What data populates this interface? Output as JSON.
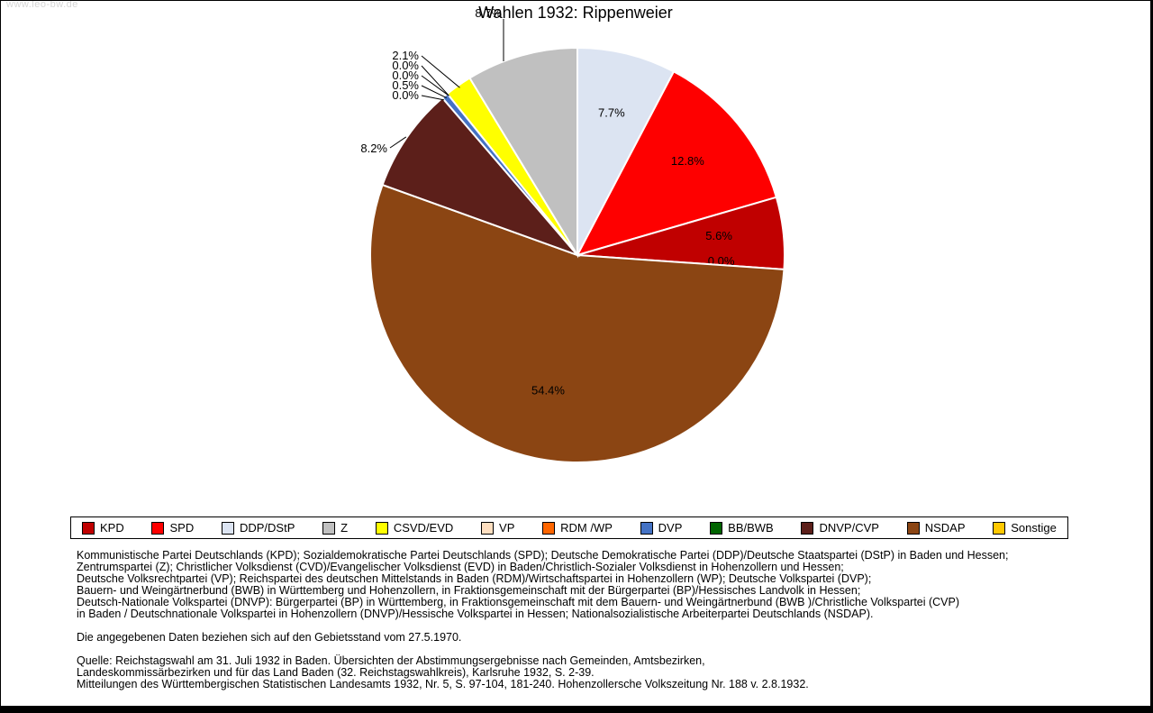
{
  "watermark": "www.leo-bw.de",
  "title": "Wahlen 1932: Rippenweier",
  "chart_data": {
    "type": "pie",
    "title": "Wahlen 1932: Rippenweier",
    "unit": "%",
    "direction": "clockwise",
    "start_angle_deg": 0,
    "legend_position": "bottom",
    "slices": [
      {
        "party": "DDP/DStP",
        "value": 7.7,
        "color": "#dce4f2",
        "label_placement": "inside"
      },
      {
        "party": "SPD",
        "value": 12.8,
        "color": "#fe0000",
        "label_placement": "inside"
      },
      {
        "party": "KPD",
        "value": 5.6,
        "color": "#c00000",
        "label_placement": "inside"
      },
      {
        "party": "Sonstige",
        "value": 0.0,
        "color": "#ffc800",
        "label_placement": "inside",
        "label_radius": 160
      },
      {
        "party": "NSDAP",
        "value": 54.4,
        "color": "#8b4513",
        "label_placement": "inside"
      },
      {
        "party": "DNVP/CVP",
        "value": 8.2,
        "color": "#5c1f1a",
        "label_placement": "left"
      },
      {
        "party": "BB/BWB",
        "value": 0.0,
        "color": "#006400",
        "label_placement": "stack"
      },
      {
        "party": "DVP",
        "value": 0.5,
        "color": "#4472c4",
        "label_placement": "stack"
      },
      {
        "party": "RDM /WP",
        "value": 0.0,
        "color": "#ff6600",
        "label_placement": "stack"
      },
      {
        "party": "VP",
        "value": 0.0,
        "color": "#ffdfc0",
        "label_placement": "stack"
      },
      {
        "party": "CSVD/EVD",
        "value": 2.1,
        "color": "#ffff00",
        "label_placement": "stack"
      },
      {
        "party": "Z",
        "value": 8.7,
        "color": "#c0c0c0",
        "label_placement": "top"
      }
    ]
  },
  "legend": {
    "items": [
      {
        "label": "KPD",
        "color": "#c00000"
      },
      {
        "label": "SPD",
        "color": "#fe0000"
      },
      {
        "label": "DDP/DStP",
        "color": "#dce4f2"
      },
      {
        "label": "Z",
        "color": "#c0c0c0"
      },
      {
        "label": "CSVD/EVD",
        "color": "#ffff00"
      },
      {
        "label": "VP",
        "color": "#ffdfc0"
      },
      {
        "label": "RDM /WP",
        "color": "#ff6600"
      },
      {
        "label": "DVP",
        "color": "#4472c4"
      },
      {
        "label": "BB/BWB",
        "color": "#006400"
      },
      {
        "label": "DNVP/CVP",
        "color": "#5c1f1a"
      },
      {
        "label": "NSDAP",
        "color": "#8b4513"
      },
      {
        "label": "Sonstige",
        "color": "#ffc800"
      }
    ]
  },
  "notes": {
    "paragraph1_lines": [
      "Kommunistische Partei Deutschlands (KPD); Sozialdemokratische Partei Deutschlands (SPD); Deutsche Demokratische Partei (DDP)/Deutsche Staatspartei (DStP) in Baden und Hessen;",
      "Zentrumspartei (Z); Christlicher Volksdienst (CVD)/Evangelischer Volksdienst (EVD) in Baden/Christlich-Sozialer Volksdienst in Hohenzollern und Hessen;",
      "Deutsche Volksrechtpartei (VP); Reichspartei des deutschen Mittelstands in Baden (RDM)/Wirtschaftspartei in Hohenzollern (WP); Deutsche Volkspartei (DVP);",
      "Bauern- und Weingärtnerbund (BWB) in Württemberg und Hohenzollern, in Fraktionsgemeinschaft mit der Bürgerpartei (BP)/Hessisches Landvolk in Hessen;",
      "Deutsch-Nationale Volkspartei (DNVP): Bürgerpartei (BP) in Württemberg, in Fraktionsgemeinschaft mit dem Bauern- und Weingärtnerbund (BWB )/Christliche Volkspartei (CVP)",
      "in Baden / Deutschnationale Volkspartei in Hohenzollern (DNVP)/Hessische Volkspartei in Hessen; Nationalsozialistische Arbeiterpartei Deutschlands (NSDAP)."
    ],
    "paragraph2": "Die angegebenen Daten beziehen sich auf den Gebietsstand vom 27.5.1970.",
    "paragraph3_lines": [
      "Quelle: Reichstagswahl am 31. Juli 1932 in Baden. Übersichten der Abstimmungsergebnisse nach Gemeinden, Amtsbezirken,",
      "Landeskommissärbezirken und für das Land Baden (32. Reichstagswahlkreis), Karlsruhe 1932, S. 2-39.",
      "Mitteilungen des Württembergischen Statistischen Landesamts 1932, Nr. 5, S. 97-104, 181-240. Hohenzollersche Volkszeitung Nr. 188 v. 2.8.1932."
    ]
  }
}
